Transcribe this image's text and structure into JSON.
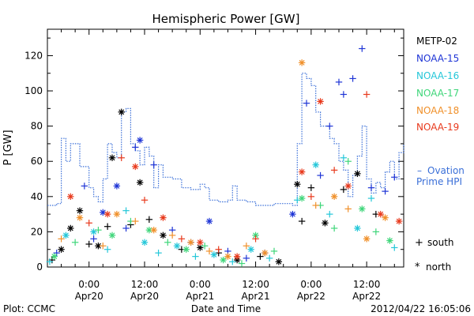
{
  "chart_data": {
    "type": "scatter",
    "title": "Hemispheric Power [GW]",
    "ylabel": "P [GW]",
    "xlabel": "Date and Time",
    "ylim": [
      0,
      135
    ],
    "xlim": [
      "2012-04-19T15:00",
      "2012-04-22T20:00"
    ],
    "y_ticks": [
      0,
      20,
      40,
      60,
      80,
      100,
      120
    ],
    "x_ticks": [
      {
        "t": "2012-04-20T00:00",
        "time": "0:00",
        "date": "Apr20"
      },
      {
        "t": "2012-04-20T12:00",
        "time": "12:00",
        "date": "Apr20"
      },
      {
        "t": "2012-04-21T00:00",
        "time": "0:00",
        "date": "Apr21"
      },
      {
        "t": "2012-04-21T12:00",
        "time": "12:00",
        "date": "Apr21"
      },
      {
        "t": "2012-04-22T00:00",
        "time": "0:00",
        "date": "Apr22"
      },
      {
        "t": "2012-04-22T12:00",
        "time": "12:00",
        "date": "Apr22"
      }
    ],
    "grid": false,
    "legend_position": "right",
    "series": [
      {
        "name": "METP-02",
        "color": "#000000",
        "points": [
          {
            "t": "2012-04-19T16:00",
            "y": 4,
            "m": "+"
          },
          {
            "t": "2012-04-19T18:00",
            "y": 10,
            "m": "*"
          },
          {
            "t": "2012-04-19T20:00",
            "y": 22,
            "m": "*"
          },
          {
            "t": "2012-04-19T22:00",
            "y": 32,
            "m": "*"
          },
          {
            "t": "2012-04-20T00:00",
            "y": 13,
            "m": "+"
          },
          {
            "t": "2012-04-20T02:00",
            "y": 12,
            "m": "*"
          },
          {
            "t": "2012-04-20T04:00",
            "y": 23,
            "m": "+"
          },
          {
            "t": "2012-04-20T05:00",
            "y": 62,
            "m": "*"
          },
          {
            "t": "2012-04-20T07:00",
            "y": 88,
            "m": "*"
          },
          {
            "t": "2012-04-20T09:00",
            "y": 24,
            "m": "+"
          },
          {
            "t": "2012-04-20T11:00",
            "y": 48,
            "m": "*"
          },
          {
            "t": "2012-04-20T13:00",
            "y": 27,
            "m": "+"
          },
          {
            "t": "2012-04-20T16:00",
            "y": 18,
            "m": "*"
          },
          {
            "t": "2012-04-20T20:00",
            "y": 10,
            "m": "+"
          },
          {
            "t": "2012-04-21T00:00",
            "y": 11,
            "m": "*"
          },
          {
            "t": "2012-04-21T04:00",
            "y": 8,
            "m": "+"
          },
          {
            "t": "2012-04-21T08:00",
            "y": 4,
            "m": "*"
          },
          {
            "t": "2012-04-21T13:00",
            "y": 6,
            "m": "+"
          },
          {
            "t": "2012-04-21T17:00",
            "y": 3,
            "m": "*"
          },
          {
            "t": "2012-04-21T21:00",
            "y": 47,
            "m": "*"
          },
          {
            "t": "2012-04-21T22:00",
            "y": 26,
            "m": "+"
          },
          {
            "t": "2012-04-22T00:00",
            "y": 45,
            "m": "+"
          },
          {
            "t": "2012-04-22T03:00",
            "y": 25,
            "m": "*"
          },
          {
            "t": "2012-04-22T07:00",
            "y": 44,
            "m": "+"
          },
          {
            "t": "2012-04-22T10:00",
            "y": 53,
            "m": "*"
          },
          {
            "t": "2012-04-22T14:00",
            "y": 30,
            "m": "+"
          }
        ]
      },
      {
        "name": "NOAA-15",
        "color": "#1f35d6",
        "points": [
          {
            "t": "2012-04-19T17:00",
            "y": 8,
            "m": "+"
          },
          {
            "t": "2012-04-19T23:00",
            "y": 46,
            "m": "+"
          },
          {
            "t": "2012-04-20T01:00",
            "y": 16,
            "m": "+"
          },
          {
            "t": "2012-04-20T03:00",
            "y": 31,
            "m": "*"
          },
          {
            "t": "2012-04-20T06:00",
            "y": 46,
            "m": "*"
          },
          {
            "t": "2012-04-20T08:00",
            "y": 22,
            "m": "+"
          },
          {
            "t": "2012-04-20T10:00",
            "y": 68,
            "m": "+"
          },
          {
            "t": "2012-04-20T11:00",
            "y": 72,
            "m": "*"
          },
          {
            "t": "2012-04-20T14:00",
            "y": 58,
            "m": "+"
          },
          {
            "t": "2012-04-20T18:00",
            "y": 21,
            "m": "+"
          },
          {
            "t": "2012-04-20T22:00",
            "y": 14,
            "m": "+"
          },
          {
            "t": "2012-04-21T02:00",
            "y": 26,
            "m": "*"
          },
          {
            "t": "2012-04-21T06:00",
            "y": 9,
            "m": "+"
          },
          {
            "t": "2012-04-21T10:00",
            "y": 5,
            "m": "+"
          },
          {
            "t": "2012-04-21T14:00",
            "y": 8,
            "m": "+"
          },
          {
            "t": "2012-04-21T20:00",
            "y": 30,
            "m": "*"
          },
          {
            "t": "2012-04-21T23:00",
            "y": 93,
            "m": "+"
          },
          {
            "t": "2012-04-22T02:00",
            "y": 52,
            "m": "+"
          },
          {
            "t": "2012-04-22T04:00",
            "y": 80,
            "m": "+"
          },
          {
            "t": "2012-04-22T06:00",
            "y": 105,
            "m": "+"
          },
          {
            "t": "2012-04-22T07:00",
            "y": 98,
            "m": "+"
          },
          {
            "t": "2012-04-22T09:00",
            "y": 107,
            "m": "+"
          },
          {
            "t": "2012-04-22T11:00",
            "y": 124,
            "m": "+"
          },
          {
            "t": "2012-04-22T13:00",
            "y": 45,
            "m": "+"
          },
          {
            "t": "2012-04-22T16:00",
            "y": 43,
            "m": "+"
          },
          {
            "t": "2012-04-22T18:00",
            "y": 51,
            "m": "+"
          }
        ]
      },
      {
        "name": "NOAA-16",
        "color": "#25c7d9",
        "points": [
          {
            "t": "2012-04-19T15:30",
            "y": 3,
            "m": "+"
          },
          {
            "t": "2012-04-19T19:00",
            "y": 18,
            "m": "*"
          },
          {
            "t": "2012-04-20T01:00",
            "y": 20,
            "m": "*"
          },
          {
            "t": "2012-04-20T04:00",
            "y": 10,
            "m": "+"
          },
          {
            "t": "2012-04-20T08:00",
            "y": 32,
            "m": "+"
          },
          {
            "t": "2012-04-20T12:00",
            "y": 14,
            "m": "*"
          },
          {
            "t": "2012-04-20T15:00",
            "y": 8,
            "m": "+"
          },
          {
            "t": "2012-04-20T19:00",
            "y": 12,
            "m": "*"
          },
          {
            "t": "2012-04-20T23:00",
            "y": 6,
            "m": "+"
          },
          {
            "t": "2012-04-21T03:00",
            "y": 7,
            "m": "*"
          },
          {
            "t": "2012-04-21T07:00",
            "y": 3,
            "m": "+"
          },
          {
            "t": "2012-04-21T11:00",
            "y": 10,
            "m": "*"
          },
          {
            "t": "2012-04-21T15:00",
            "y": 5,
            "m": "+"
          },
          {
            "t": "2012-04-21T21:00",
            "y": 38,
            "m": "+"
          },
          {
            "t": "2012-04-22T01:00",
            "y": 58,
            "m": "*"
          },
          {
            "t": "2012-04-22T04:00",
            "y": 30,
            "m": "+"
          },
          {
            "t": "2012-04-22T07:00",
            "y": 62,
            "m": "+"
          },
          {
            "t": "2012-04-22T10:00",
            "y": 22,
            "m": "*"
          },
          {
            "t": "2012-04-22T13:00",
            "y": 39,
            "m": "+"
          },
          {
            "t": "2012-04-22T18:00",
            "y": 11,
            "m": "+"
          }
        ]
      },
      {
        "name": "NOAA-17",
        "color": "#3fd67a",
        "points": [
          {
            "t": "2012-04-19T16:30",
            "y": 6,
            "m": "*"
          },
          {
            "t": "2012-04-19T21:00",
            "y": 14,
            "m": "+"
          },
          {
            "t": "2012-04-20T02:00",
            "y": 21,
            "m": "+"
          },
          {
            "t": "2012-04-20T05:00",
            "y": 18,
            "m": "*"
          },
          {
            "t": "2012-04-20T09:00",
            "y": 26,
            "m": "+"
          },
          {
            "t": "2012-04-20T13:00",
            "y": 21,
            "m": "*"
          },
          {
            "t": "2012-04-20T17:00",
            "y": 14,
            "m": "+"
          },
          {
            "t": "2012-04-20T21:00",
            "y": 10,
            "m": "*"
          },
          {
            "t": "2012-04-21T01:00",
            "y": 12,
            "m": "+"
          },
          {
            "t": "2012-04-21T05:00",
            "y": 4,
            "m": "*"
          },
          {
            "t": "2012-04-21T09:00",
            "y": 2,
            "m": "+"
          },
          {
            "t": "2012-04-21T12:00",
            "y": 18,
            "m": "*"
          },
          {
            "t": "2012-04-21T16:00",
            "y": 9,
            "m": "+"
          },
          {
            "t": "2012-04-21T22:00",
            "y": 39,
            "m": "*"
          },
          {
            "t": "2012-04-22T02:00",
            "y": 35,
            "m": "+"
          },
          {
            "t": "2012-04-22T05:00",
            "y": 22,
            "m": "+"
          },
          {
            "t": "2012-04-22T08:00",
            "y": 60,
            "m": "+"
          },
          {
            "t": "2012-04-22T11:00",
            "y": 33,
            "m": "*"
          },
          {
            "t": "2012-04-22T14:00",
            "y": 20,
            "m": "+"
          },
          {
            "t": "2012-04-22T17:00",
            "y": 15,
            "m": "*"
          }
        ]
      },
      {
        "name": "NOAA-18",
        "color": "#f0902a",
        "points": [
          {
            "t": "2012-04-19T18:00",
            "y": 16,
            "m": "+"
          },
          {
            "t": "2012-04-19T22:00",
            "y": 28,
            "m": "*"
          },
          {
            "t": "2012-04-20T03:00",
            "y": 12,
            "m": "+"
          },
          {
            "t": "2012-04-20T06:00",
            "y": 30,
            "m": "*"
          },
          {
            "t": "2012-04-20T10:00",
            "y": 26,
            "m": "+"
          },
          {
            "t": "2012-04-20T14:00",
            "y": 21,
            "m": "*"
          },
          {
            "t": "2012-04-20T18:00",
            "y": 18,
            "m": "+"
          },
          {
            "t": "2012-04-20T22:00",
            "y": 14,
            "m": "*"
          },
          {
            "t": "2012-04-21T02:00",
            "y": 9,
            "m": "+"
          },
          {
            "t": "2012-04-21T06:00",
            "y": 6,
            "m": "*"
          },
          {
            "t": "2012-04-21T10:00",
            "y": 12,
            "m": "+"
          },
          {
            "t": "2012-04-21T14:00",
            "y": 8,
            "m": "*"
          },
          {
            "t": "2012-04-21T22:00",
            "y": 116,
            "m": "*"
          },
          {
            "t": "2012-04-22T01:00",
            "y": 35,
            "m": "+"
          },
          {
            "t": "2012-04-22T05:00",
            "y": 40,
            "m": "*"
          },
          {
            "t": "2012-04-22T08:00",
            "y": 33,
            "m": "+"
          },
          {
            "t": "2012-04-22T12:00",
            "y": 16,
            "m": "*"
          },
          {
            "t": "2012-04-22T16:00",
            "y": 28,
            "m": "*"
          }
        ]
      },
      {
        "name": "NOAA-19",
        "color": "#e8391c",
        "points": [
          {
            "t": "2012-04-19T20:00",
            "y": 40,
            "m": "*"
          },
          {
            "t": "2012-04-20T00:00",
            "y": 25,
            "m": "+"
          },
          {
            "t": "2012-04-20T04:00",
            "y": 30,
            "m": "*"
          },
          {
            "t": "2012-04-20T07:00",
            "y": 62,
            "m": "+"
          },
          {
            "t": "2012-04-20T10:00",
            "y": 57,
            "m": "*"
          },
          {
            "t": "2012-04-20T12:00",
            "y": 38,
            "m": "+"
          },
          {
            "t": "2012-04-20T16:00",
            "y": 28,
            "m": "*"
          },
          {
            "t": "2012-04-20T20:00",
            "y": 16,
            "m": "+"
          },
          {
            "t": "2012-04-21T00:00",
            "y": 14,
            "m": "*"
          },
          {
            "t": "2012-04-21T04:00",
            "y": 10,
            "m": "+"
          },
          {
            "t": "2012-04-21T08:00",
            "y": 6,
            "m": "*"
          },
          {
            "t": "2012-04-21T12:00",
            "y": 16,
            "m": "+"
          },
          {
            "t": "2012-04-21T22:00",
            "y": 54,
            "m": "*"
          },
          {
            "t": "2012-04-22T00:00",
            "y": 40,
            "m": "+"
          },
          {
            "t": "2012-04-22T02:00",
            "y": 94,
            "m": "*"
          },
          {
            "t": "2012-04-22T05:00",
            "y": 55,
            "m": "+"
          },
          {
            "t": "2012-04-22T08:00",
            "y": 46,
            "m": "*"
          },
          {
            "t": "2012-04-22T12:00",
            "y": 98,
            "m": "+"
          },
          {
            "t": "2012-04-22T15:00",
            "y": 30,
            "m": "*"
          },
          {
            "t": "2012-04-22T19:00",
            "y": 26,
            "m": "*"
          }
        ]
      }
    ],
    "ovation": {
      "name": "Ovation",
      "name_line2": "Prime HPI",
      "legend_symbol": "–",
      "color": "#3a6fd8",
      "points": [
        [
          "2012-04-19T15:00",
          35
        ],
        [
          "2012-04-19T17:00",
          36
        ],
        [
          "2012-04-19T18:00",
          73
        ],
        [
          "2012-04-19T19:00",
          60
        ],
        [
          "2012-04-19T20:00",
          70
        ],
        [
          "2012-04-19T22:00",
          57
        ],
        [
          "2012-04-20T00:00",
          45
        ],
        [
          "2012-04-20T01:00",
          40
        ],
        [
          "2012-04-20T02:00",
          37
        ],
        [
          "2012-04-20T03:00",
          50
        ],
        [
          "2012-04-20T04:00",
          70
        ],
        [
          "2012-04-20T05:00",
          65
        ],
        [
          "2012-04-20T06:00",
          62
        ],
        [
          "2012-04-20T07:00",
          88
        ],
        [
          "2012-04-20T08:00",
          90
        ],
        [
          "2012-04-20T09:00",
          70
        ],
        [
          "2012-04-20T10:00",
          66
        ],
        [
          "2012-04-20T11:00",
          58
        ],
        [
          "2012-04-20T12:00",
          68
        ],
        [
          "2012-04-20T13:00",
          63
        ],
        [
          "2012-04-20T14:00",
          45
        ],
        [
          "2012-04-20T15:00",
          58
        ],
        [
          "2012-04-20T16:00",
          51
        ],
        [
          "2012-04-20T18:00",
          50
        ],
        [
          "2012-04-20T20:00",
          45
        ],
        [
          "2012-04-20T22:00",
          44
        ],
        [
          "2012-04-21T00:00",
          47
        ],
        [
          "2012-04-21T01:00",
          45
        ],
        [
          "2012-04-21T02:00",
          38
        ],
        [
          "2012-04-21T04:00",
          37
        ],
        [
          "2012-04-21T06:00",
          38
        ],
        [
          "2012-04-21T07:00",
          46
        ],
        [
          "2012-04-21T08:00",
          38
        ],
        [
          "2012-04-21T10:00",
          37
        ],
        [
          "2012-04-21T12:00",
          35
        ],
        [
          "2012-04-21T14:00",
          35
        ],
        [
          "2012-04-21T16:00",
          36
        ],
        [
          "2012-04-21T18:00",
          36
        ],
        [
          "2012-04-21T20:00",
          35
        ],
        [
          "2012-04-21T21:00",
          70
        ],
        [
          "2012-04-21T22:00",
          110
        ],
        [
          "2012-04-21T23:00",
          107
        ],
        [
          "2012-04-22T00:00",
          103
        ],
        [
          "2012-04-22T01:00",
          88
        ],
        [
          "2012-04-22T02:00",
          80
        ],
        [
          "2012-04-22T03:00",
          80
        ],
        [
          "2012-04-22T04:00",
          73
        ],
        [
          "2012-04-22T05:00",
          70
        ],
        [
          "2012-04-22T06:00",
          60
        ],
        [
          "2012-04-22T07:00",
          55
        ],
        [
          "2012-04-22T08:00",
          40
        ],
        [
          "2012-04-22T09:00",
          52
        ],
        [
          "2012-04-22T10:00",
          63
        ],
        [
          "2012-04-22T11:00",
          80
        ],
        [
          "2012-04-22T12:00",
          50
        ],
        [
          "2012-04-22T13:00",
          42
        ],
        [
          "2012-04-22T14:00",
          48
        ],
        [
          "2012-04-22T15:00",
          45
        ],
        [
          "2012-04-22T16:00",
          54
        ],
        [
          "2012-04-22T17:00",
          60
        ],
        [
          "2012-04-22T18:00",
          50
        ],
        [
          "2012-04-22T19:00",
          65
        ],
        [
          "2012-04-22T20:00",
          70
        ]
      ]
    },
    "marker_legend": [
      {
        "symbol": "+",
        "label": "south"
      },
      {
        "symbol": "*",
        "label": "north"
      }
    ]
  },
  "footer": {
    "plot_label": "Plot: CCMC",
    "timestamp": "2012/04/22 16:05:06"
  }
}
